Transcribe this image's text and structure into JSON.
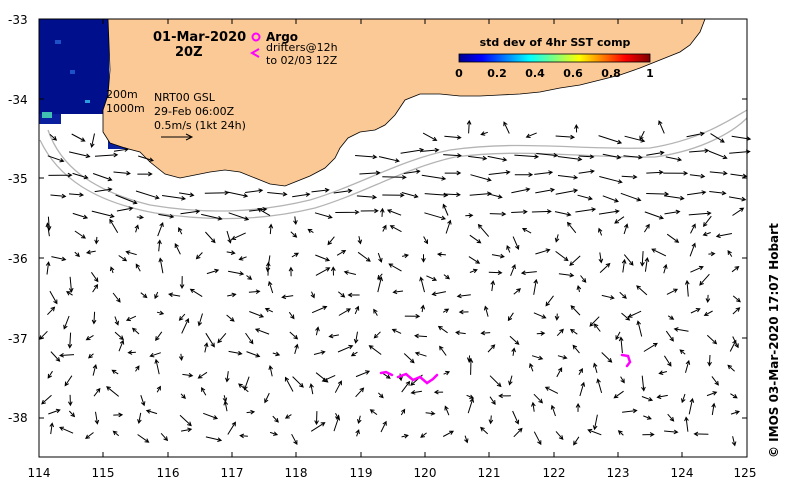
{
  "map": {
    "date_title": "01-Mar-2020",
    "time_title": "20Z",
    "legend_argo": "Argo",
    "legend_drifters_1": "drifters@12h",
    "legend_drifters_2": "to 02/03 12Z",
    "colorbar_title": "std dev of 4hr SST comp",
    "colorbar_ticks": [
      "0",
      "0.2",
      "0.4",
      "0.6",
      "0.8",
      "1"
    ],
    "isobath_1": "200m",
    "isobath_2": "1000m",
    "product_line_1": "NRT00 GSL",
    "product_line_2": "29-Feb 06:00Z",
    "product_line_3": "0.5m/s (1kt 24h)",
    "credit": "© IMOS 03-Mar-2020 17:07 Hobart",
    "x_ticks": [
      "114",
      "115",
      "116",
      "117",
      "118",
      "119",
      "120",
      "121",
      "122",
      "123",
      "124",
      "125"
    ],
    "y_ticks": [
      "-33",
      "-34",
      "-35",
      "-36",
      "-37",
      "-38"
    ],
    "colors": {
      "land": "#fbc996",
      "drifter": "#ff00ff",
      "sst_deep": "#000f8c",
      "isobath": "#b4b4b4"
    }
  }
}
